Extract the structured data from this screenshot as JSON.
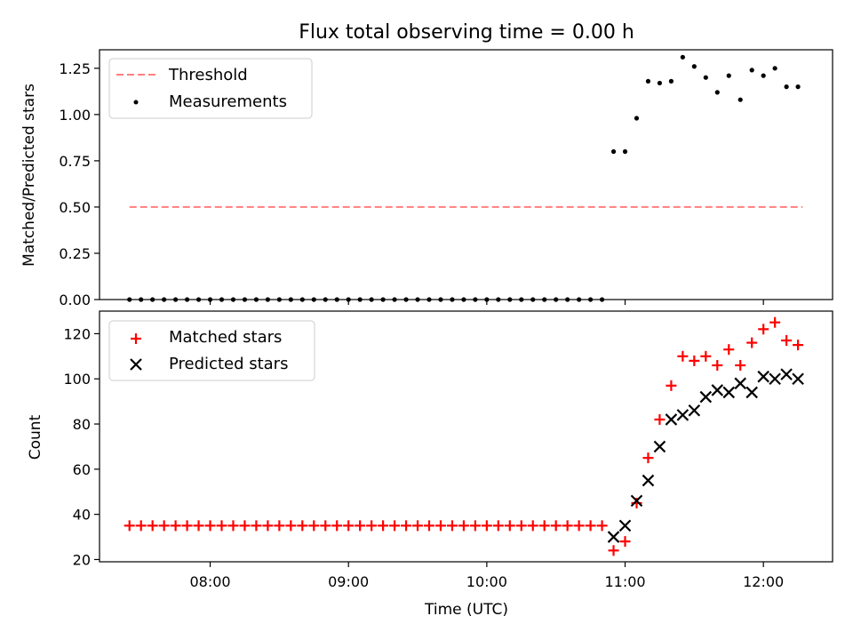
{
  "chart_data": [
    {
      "type": "scatter",
      "title": "Flux total observing time = 0.00 h",
      "xlabel": "",
      "ylabel": "Matched/Predicted stars",
      "ylim": [
        0,
        1.35
      ],
      "yticks": [
        "0.00",
        "0.25",
        "0.50",
        "0.75",
        "1.00",
        "1.25"
      ],
      "ytick_values": [
        0,
        0.25,
        0.5,
        0.75,
        1.0,
        1.25
      ],
      "legend_position": "top-left",
      "threshold": {
        "name": "Threshold",
        "color": "#ff7f7f",
        "x": [
          "07:25",
          "12:17"
        ],
        "y": [
          0.5,
          0.5
        ]
      },
      "series": [
        {
          "name": "Measurements",
          "marker": "dot",
          "color": "#000000",
          "x": [
            "07:25",
            "07:30",
            "07:35",
            "07:40",
            "07:45",
            "07:50",
            "07:55",
            "08:00",
            "08:05",
            "08:10",
            "08:15",
            "08:20",
            "08:25",
            "08:30",
            "08:35",
            "08:40",
            "08:45",
            "08:50",
            "08:55",
            "09:00",
            "09:05",
            "09:10",
            "09:15",
            "09:20",
            "09:25",
            "09:30",
            "09:35",
            "09:40",
            "09:45",
            "09:50",
            "09:55",
            "10:00",
            "10:05",
            "10:10",
            "10:15",
            "10:20",
            "10:25",
            "10:30",
            "10:35",
            "10:40",
            "10:45",
            "10:50",
            "10:55",
            "11:00",
            "11:05",
            "11:10",
            "11:15",
            "11:20",
            "11:25",
            "11:30",
            "11:35",
            "11:40",
            "11:45",
            "11:50",
            "11:55",
            "12:00",
            "12:05",
            "12:10",
            "12:15"
          ],
          "y": [
            0,
            0,
            0,
            0,
            0,
            0,
            0,
            0,
            0,
            0,
            0,
            0,
            0,
            0,
            0,
            0,
            0,
            0,
            0,
            0,
            0,
            0,
            0,
            0,
            0,
            0,
            0,
            0,
            0,
            0,
            0,
            0,
            0,
            0,
            0,
            0,
            0,
            0,
            0,
            0,
            0,
            0,
            0.8,
            0.8,
            0.98,
            1.18,
            1.17,
            1.18,
            1.31,
            1.26,
            1.2,
            1.12,
            1.21,
            1.08,
            1.24,
            1.21,
            1.25,
            1.15,
            1.15
          ]
        }
      ]
    },
    {
      "type": "scatter",
      "title": "",
      "xlabel": "Time (UTC)",
      "ylabel": "Count",
      "ylim": [
        19,
        130
      ],
      "yticks": [
        "20",
        "40",
        "60",
        "80",
        "100",
        "120"
      ],
      "ytick_values": [
        20,
        40,
        60,
        80,
        100,
        120
      ],
      "xlim": [
        "07:12",
        "12:30"
      ],
      "xticks": [
        "08:00",
        "09:00",
        "10:00",
        "11:00",
        "12:00"
      ],
      "legend_position": "top-left",
      "series": [
        {
          "name": "Matched stars",
          "marker": "plus",
          "color": "#ff0000",
          "x": [
            "07:25",
            "07:30",
            "07:35",
            "07:40",
            "07:45",
            "07:50",
            "07:55",
            "08:00",
            "08:05",
            "08:10",
            "08:15",
            "08:20",
            "08:25",
            "08:30",
            "08:35",
            "08:40",
            "08:45",
            "08:50",
            "08:55",
            "09:00",
            "09:05",
            "09:10",
            "09:15",
            "09:20",
            "09:25",
            "09:30",
            "09:35",
            "09:40",
            "09:45",
            "09:50",
            "09:55",
            "10:00",
            "10:05",
            "10:10",
            "10:15",
            "10:20",
            "10:25",
            "10:30",
            "10:35",
            "10:40",
            "10:45",
            "10:50",
            "10:55",
            "11:00",
            "11:05",
            "11:10",
            "11:15",
            "11:20",
            "11:25",
            "11:30",
            "11:35",
            "11:40",
            "11:45",
            "11:50",
            "11:55",
            "12:00",
            "12:05",
            "12:10",
            "12:15"
          ],
          "y": [
            35,
            35,
            35,
            35,
            35,
            35,
            35,
            35,
            35,
            35,
            35,
            35,
            35,
            35,
            35,
            35,
            35,
            35,
            35,
            35,
            35,
            35,
            35,
            35,
            35,
            35,
            35,
            35,
            35,
            35,
            35,
            35,
            35,
            35,
            35,
            35,
            35,
            35,
            35,
            35,
            35,
            35,
            24,
            28,
            45,
            65,
            82,
            97,
            110,
            108,
            110,
            106,
            113,
            106,
            116,
            122,
            125,
            117,
            115
          ]
        },
        {
          "name": "Predicted stars",
          "marker": "x",
          "color": "#000000",
          "x": [
            "10:55",
            "11:00",
            "11:05",
            "11:10",
            "11:15",
            "11:20",
            "11:25",
            "11:30",
            "11:35",
            "11:40",
            "11:45",
            "11:50",
            "11:55",
            "12:00",
            "12:05",
            "12:10",
            "12:15"
          ],
          "y": [
            30,
            35,
            46,
            55,
            70,
            82,
            84,
            86,
            92,
            95,
            94,
            98,
            94,
            101,
            100,
            102,
            100
          ]
        }
      ]
    }
  ]
}
